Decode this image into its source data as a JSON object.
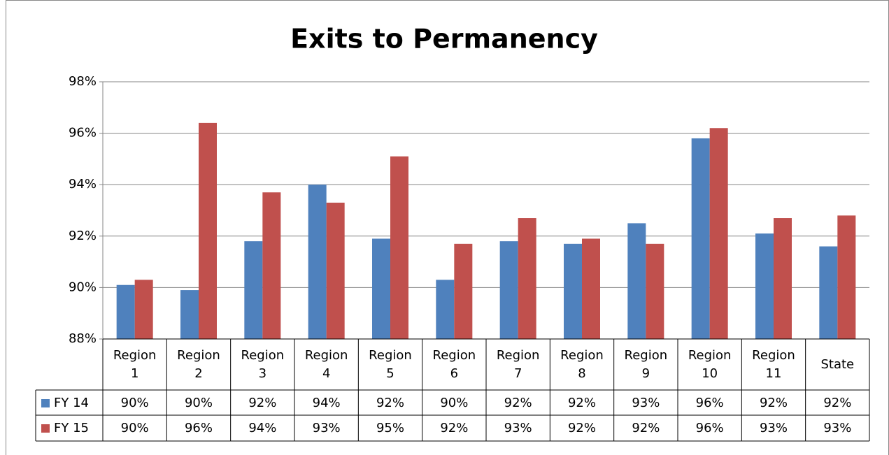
{
  "chart_data": {
    "type": "bar",
    "title": "Exits to Permanency",
    "categories": [
      "Region 1",
      "Region 2",
      "Region 3",
      "Region 4",
      "Region 5",
      "Region 6",
      "Region 7",
      "Region 8",
      "Region 9",
      "Region 10",
      "Region 11",
      "State"
    ],
    "series": [
      {
        "name": "FY 14",
        "color": "#4f81bd",
        "values": [
          90.1,
          89.9,
          91.8,
          94.0,
          91.9,
          90.3,
          91.8,
          91.7,
          92.5,
          95.8,
          92.1,
          91.6
        ],
        "value_labels": [
          "90%",
          "90%",
          "92%",
          "94%",
          "92%",
          "90%",
          "92%",
          "92%",
          "93%",
          "96%",
          "92%",
          "92%"
        ]
      },
      {
        "name": "FY 15",
        "color": "#c0504d",
        "values": [
          90.3,
          96.4,
          93.7,
          93.3,
          95.1,
          91.7,
          92.7,
          91.9,
          91.7,
          96.2,
          92.7,
          92.8
        ],
        "value_labels": [
          "90%",
          "96%",
          "94%",
          "93%",
          "95%",
          "92%",
          "93%",
          "92%",
          "92%",
          "96%",
          "93%",
          "93%"
        ]
      }
    ],
    "ylim": [
      88,
      98
    ],
    "yticks": [
      {
        "value": 88,
        "label": "88%"
      },
      {
        "value": 90,
        "label": "90%"
      },
      {
        "value": 92,
        "label": "92%"
      },
      {
        "value": 94,
        "label": "94%"
      },
      {
        "value": 96,
        "label": "96%"
      },
      {
        "value": 98,
        "label": "98%"
      }
    ],
    "grid": true
  }
}
